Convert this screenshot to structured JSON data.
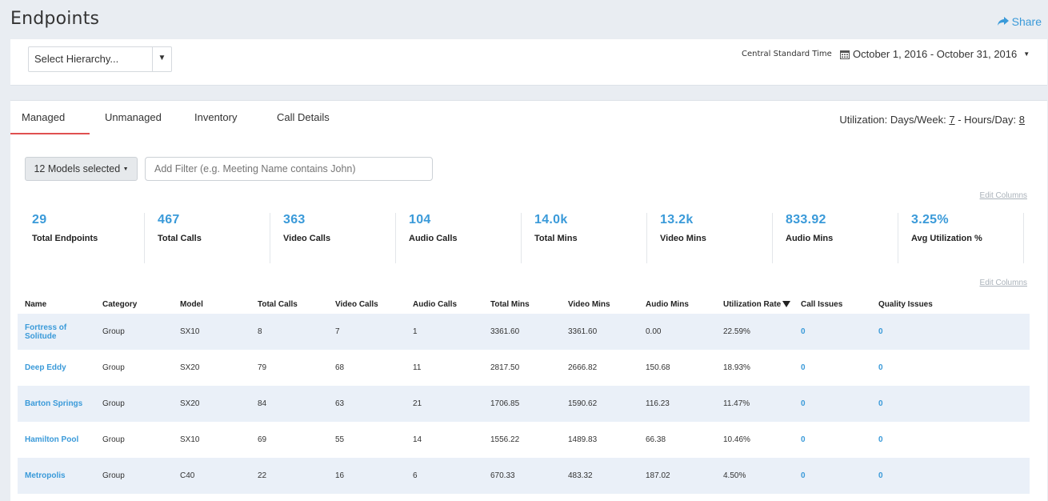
{
  "page": {
    "title": "Endpoints",
    "share_label": "Share"
  },
  "filters": {
    "hierarchy_placeholder": "Select Hierarchy...",
    "timezone": "Central Standard Time",
    "date_range": "October 1, 2016 - October 31, 2016"
  },
  "tabs": [
    {
      "label": "Managed",
      "active": true
    },
    {
      "label": "Unmanaged",
      "active": false
    },
    {
      "label": "Inventory",
      "active": false
    },
    {
      "label": "Call Details",
      "active": false
    }
  ],
  "utilization": {
    "prefix": "Utilization: Days/Week: ",
    "days": "7",
    "middle": " - Hours/Day: ",
    "hours": "8"
  },
  "models_button": "12 Models selected",
  "filter_placeholder": "Add Filter (e.g. Meeting Name contains John)",
  "edit_columns_label": "Edit Columns",
  "stats": [
    {
      "value": "29",
      "label": "Total Endpoints"
    },
    {
      "value": "467",
      "label": "Total Calls"
    },
    {
      "value": "363",
      "label": "Video Calls"
    },
    {
      "value": "104",
      "label": "Audio Calls"
    },
    {
      "value": "14.0k",
      "label": "Total Mins"
    },
    {
      "value": "13.2k",
      "label": "Video Mins"
    },
    {
      "value": "833.92",
      "label": "Audio Mins"
    },
    {
      "value": "3.25%",
      "label": "Avg Utilization %"
    }
  ],
  "table": {
    "columns": [
      "Name",
      "Category",
      "Model",
      "Total Calls",
      "Video Calls",
      "Audio Calls",
      "Total Mins",
      "Video Mins",
      "Audio Mins",
      "Utilization Rate",
      "Call Issues",
      "Quality Issues"
    ],
    "rows": [
      [
        "Fortress of Solitude",
        "Group",
        "SX10",
        "8",
        "7",
        "1",
        "3361.60",
        "3361.60",
        "0.00",
        "22.59%",
        "0",
        "0"
      ],
      [
        "Deep Eddy",
        "Group",
        "SX20",
        "79",
        "68",
        "11",
        "2817.50",
        "2666.82",
        "150.68",
        "18.93%",
        "0",
        "0"
      ],
      [
        "Barton Springs",
        "Group",
        "SX20",
        "84",
        "63",
        "21",
        "1706.85",
        "1590.62",
        "116.23",
        "11.47%",
        "0",
        "0"
      ],
      [
        "Hamilton Pool",
        "Group",
        "SX10",
        "69",
        "55",
        "14",
        "1556.22",
        "1489.83",
        "66.38",
        "10.46%",
        "0",
        "0"
      ],
      [
        "Metropolis",
        "Group",
        "C40",
        "22",
        "16",
        "6",
        "670.33",
        "483.32",
        "187.02",
        "4.50%",
        "0",
        "0"
      ]
    ]
  },
  "colors": {
    "accent": "#3a9ad9",
    "active_tab": "#e05050",
    "row_stripe": "#eaf0f8"
  },
  "icons": {
    "share": "share-arrow-icon",
    "calendar": "calendar-icon"
  }
}
